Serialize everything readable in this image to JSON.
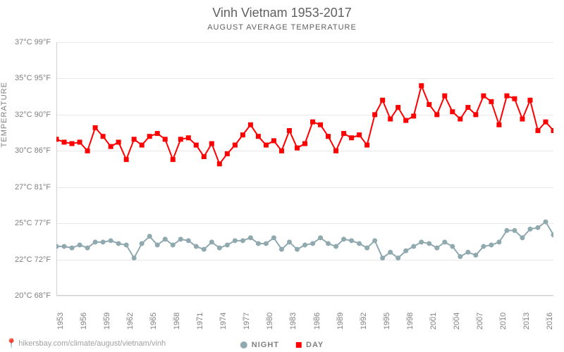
{
  "title": "Vinh Vietnam 1953-2017",
  "subtitle": "AUGUST AVERAGE TEMPERATURE",
  "y_label": "TEMPERATURE",
  "attribution": "hikersbay.com/climate/august/vietnam/vinh",
  "legend": [
    {
      "label": "NIGHT",
      "color": "#8fa9af",
      "marker": "circle"
    },
    {
      "label": "DAY",
      "color": "#ff0000",
      "marker": "square"
    }
  ],
  "chart": {
    "type": "line",
    "background_color": "#ffffff",
    "grid_color": "#e8e8e8",
    "axis_color": "#d0d0d0",
    "text_color": "#808080",
    "ylim_c": [
      20,
      37.5
    ],
    "y_ticks": [
      {
        "c": "20°C",
        "f": "68°F",
        "val": 20
      },
      {
        "c": "22°C",
        "f": "72°F",
        "val": 22.5
      },
      {
        "c": "25°C",
        "f": "77°F",
        "val": 25
      },
      {
        "c": "27°C",
        "f": "81°F",
        "val": 27.5
      },
      {
        "c": "30°C",
        "f": "86°F",
        "val": 30
      },
      {
        "c": "32°C",
        "f": "90°F",
        "val": 32.5
      },
      {
        "c": "35°C",
        "f": "95°F",
        "val": 35
      },
      {
        "c": "37°C",
        "f": "99°F",
        "val": 37.5
      }
    ],
    "x_ticks": [
      1953,
      1956,
      1959,
      1962,
      1965,
      1968,
      1971,
      1974,
      1977,
      1980,
      1983,
      1986,
      1989,
      1992,
      1995,
      1998,
      2001,
      2004,
      2007,
      2010,
      2013,
      2016
    ],
    "xlim": [
      1953,
      2017
    ],
    "title_fontsize": 18,
    "subtitle_fontsize": 11,
    "tick_fontsize": 11,
    "line_width": 2,
    "marker_size": 3.5,
    "series": {
      "day": {
        "color": "#ff0000",
        "marker": "square",
        "years": [
          1953,
          1954,
          1955,
          1956,
          1957,
          1958,
          1959,
          1960,
          1961,
          1962,
          1963,
          1964,
          1965,
          1966,
          1967,
          1968,
          1969,
          1970,
          1971,
          1972,
          1973,
          1974,
          1975,
          1976,
          1977,
          1978,
          1979,
          1980,
          1981,
          1982,
          1983,
          1984,
          1985,
          1986,
          1987,
          1988,
          1989,
          1990,
          1991,
          1992,
          1993,
          1994,
          1995,
          1996,
          1997,
          1998,
          1999,
          2000,
          2001,
          2002,
          2003,
          2004,
          2005,
          2006,
          2007,
          2008,
          2009,
          2010,
          2011,
          2012,
          2013,
          2014,
          2015,
          2016,
          2017
        ],
        "values": [
          30.8,
          30.6,
          30.5,
          30.6,
          30.0,
          31.6,
          31.0,
          30.3,
          30.6,
          29.4,
          30.8,
          30.4,
          31.0,
          31.2,
          30.8,
          29.4,
          30.8,
          30.9,
          30.4,
          29.6,
          30.5,
          29.1,
          29.8,
          30.4,
          31.1,
          31.8,
          31.0,
          30.4,
          30.7,
          30.0,
          31.4,
          30.2,
          30.5,
          32.0,
          31.8,
          31.0,
          30.0,
          31.2,
          30.9,
          31.1,
          30.4,
          32.5,
          33.5,
          32.2,
          33.0,
          32.1,
          32.4,
          34.5,
          33.2,
          32.5,
          33.8,
          32.7,
          32.2,
          33.0,
          32.5,
          33.8,
          33.4,
          31.8,
          33.8,
          33.6,
          32.2,
          33.5,
          31.4,
          32.0,
          31.4
        ]
      },
      "night": {
        "color": "#8fa9af",
        "marker": "circle",
        "years": [
          1953,
          1954,
          1955,
          1956,
          1957,
          1958,
          1959,
          1960,
          1961,
          1962,
          1963,
          1964,
          1965,
          1966,
          1967,
          1968,
          1969,
          1970,
          1971,
          1972,
          1973,
          1974,
          1975,
          1976,
          1977,
          1978,
          1979,
          1980,
          1981,
          1982,
          1983,
          1984,
          1985,
          1986,
          1987,
          1988,
          1989,
          1990,
          1991,
          1992,
          1993,
          1994,
          1995,
          1996,
          1997,
          1998,
          1999,
          2000,
          2001,
          2002,
          2003,
          2004,
          2005,
          2006,
          2007,
          2008,
          2009,
          2010,
          2011,
          2012,
          2013,
          2014,
          2015,
          2016,
          2017
        ],
        "values": [
          23.4,
          23.4,
          23.3,
          23.5,
          23.3,
          23.7,
          23.7,
          23.8,
          23.6,
          23.5,
          22.6,
          23.6,
          24.1,
          23.5,
          23.9,
          23.5,
          23.9,
          23.8,
          23.4,
          23.2,
          23.7,
          23.3,
          23.5,
          23.8,
          23.8,
          24.0,
          23.6,
          23.6,
          24.0,
          23.2,
          23.7,
          23.2,
          23.5,
          23.6,
          24.0,
          23.6,
          23.4,
          23.9,
          23.8,
          23.6,
          23.3,
          23.8,
          22.6,
          23.0,
          22.6,
          23.1,
          23.4,
          23.7,
          23.6,
          23.3,
          23.7,
          23.4,
          22.7,
          23.0,
          22.8,
          23.4,
          23.5,
          23.7,
          24.5,
          24.5,
          24.0,
          24.6,
          24.7,
          25.1,
          24.2
        ]
      }
    }
  }
}
